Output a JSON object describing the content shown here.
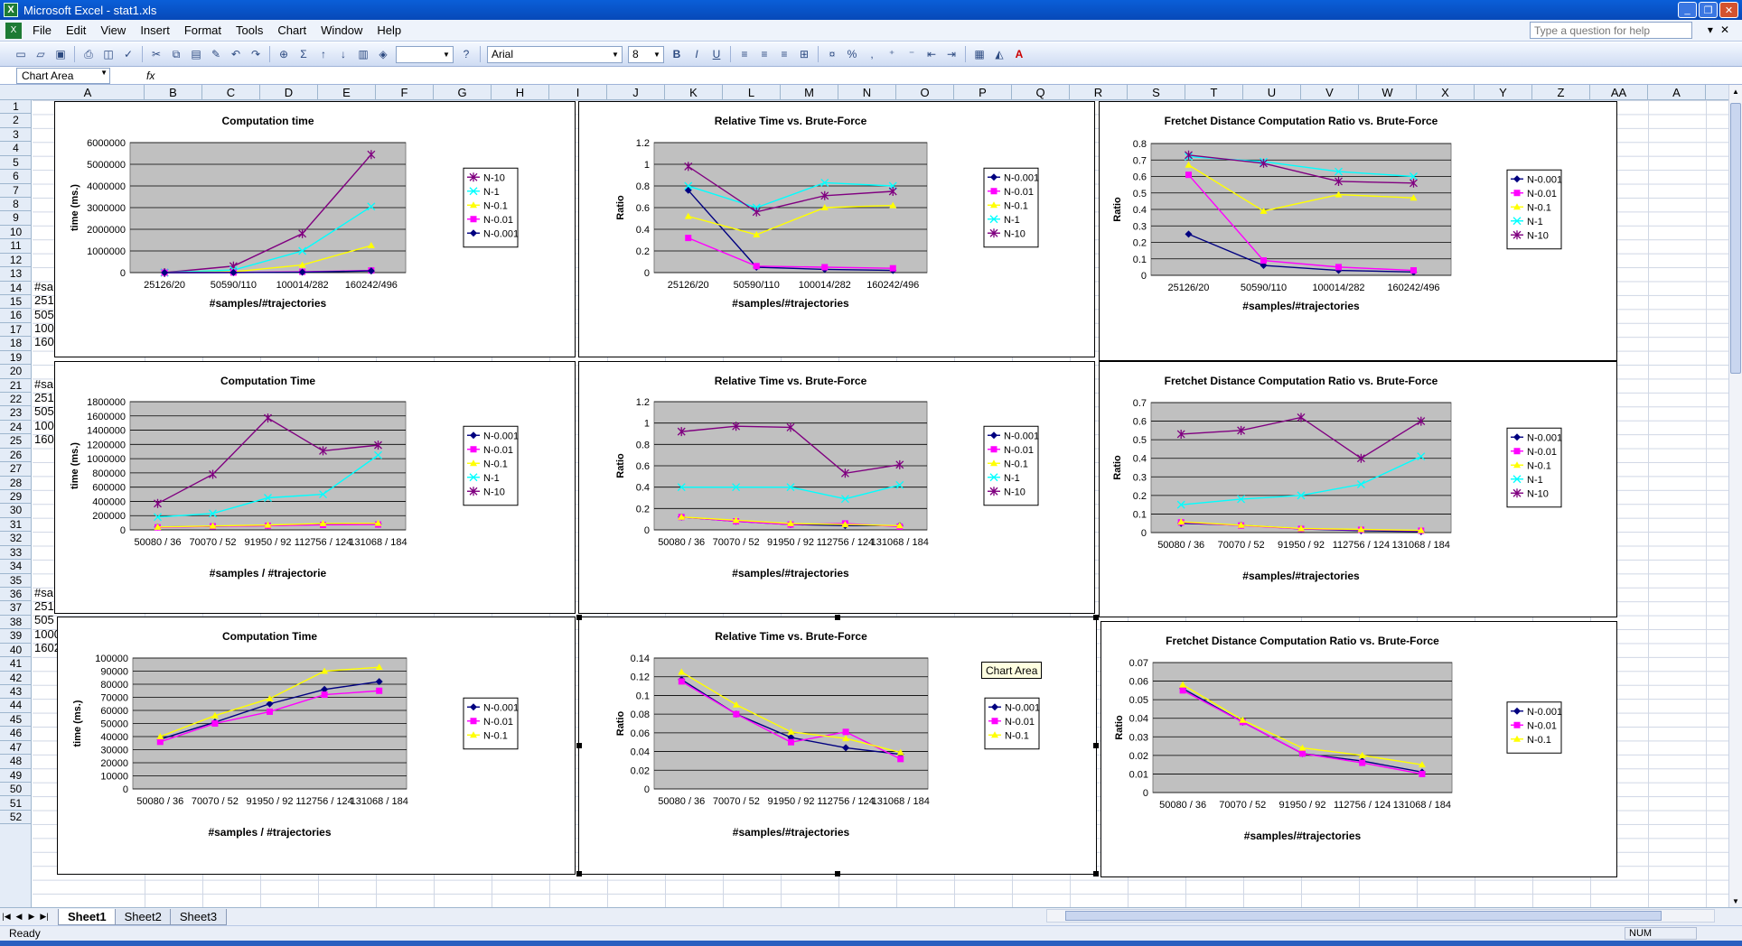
{
  "window": {
    "title": "Microsoft Excel - stat1.xls"
  },
  "menu": [
    "File",
    "Edit",
    "View",
    "Insert",
    "Format",
    "Tools",
    "Chart",
    "Window",
    "Help"
  ],
  "help_placeholder": "Type a question for help",
  "toolbar": {
    "font": "Arial",
    "size": "8"
  },
  "namebox": "Chart Area",
  "fx": "fx",
  "columns": [
    "A",
    "B",
    "C",
    "D",
    "E",
    "F",
    "G",
    "H",
    "I",
    "J",
    "K",
    "L",
    "M",
    "N",
    "O",
    "P",
    "Q",
    "R",
    "S",
    "T",
    "U",
    "V",
    "W",
    "X",
    "Y",
    "Z",
    "AA",
    "A"
  ],
  "rows": [
    "1",
    "2",
    "3",
    "4",
    "5",
    "6",
    "7",
    "8",
    "9",
    "10",
    "11",
    "12",
    "13",
    "14",
    "15",
    "16",
    "17",
    "18",
    "19",
    "20",
    "21",
    "22",
    "23",
    "24",
    "25",
    "26",
    "27",
    "28",
    "29",
    "30",
    "31",
    "32",
    "33",
    "34",
    "35",
    "36",
    "37",
    "38",
    "39",
    "40",
    "41",
    "42",
    "43",
    "44",
    "45",
    "46",
    "47",
    "48",
    "49",
    "50",
    "51",
    "52"
  ],
  "cell_fragments": [
    "#sa",
    "251",
    "505",
    "100",
    "160",
    "#sa",
    "251",
    "505",
    "100",
    "160",
    "#sa",
    "251",
    "505",
    "1000",
    "1602"
  ],
  "sheets": [
    "Sheet1",
    "Sheet2",
    "Sheet3"
  ],
  "status": {
    "ready": "Ready",
    "num": "NUM"
  },
  "tooltip": "Chart Area",
  "chart_data": [
    {
      "type": "line",
      "title": "Computation time",
      "xlabel": "#samples/#trajectories",
      "ylabel": "time (ms.)",
      "categories": [
        "25126/20",
        "50590/110",
        "100014/282",
        "160242/496"
      ],
      "ylim": [
        0,
        6000000
      ],
      "yticks": [
        0,
        1000000,
        2000000,
        3000000,
        4000000,
        5000000,
        6000000
      ],
      "series": [
        {
          "name": "N-10",
          "color": "#800080",
          "values": [
            0,
            300000,
            1800000,
            5450000
          ]
        },
        {
          "name": "N-1",
          "color": "#00ffff",
          "values": [
            0,
            120000,
            1000000,
            3050000
          ]
        },
        {
          "name": "N-0.1",
          "color": "#ffff00",
          "values": [
            0,
            40000,
            350000,
            1250000
          ]
        },
        {
          "name": "N-0.01",
          "color": "#ff00ff",
          "values": [
            0,
            5000,
            40000,
            100000
          ]
        },
        {
          "name": "N-0.001",
          "color": "#000080",
          "values": [
            0,
            3000,
            20000,
            80000
          ]
        }
      ]
    },
    {
      "type": "line",
      "title": "Relative Time vs. Brute-Force",
      "xlabel": "#samples/#trajectories",
      "ylabel": "Ratio",
      "categories": [
        "25126/20",
        "50590/110",
        "100014/282",
        "160242/496"
      ],
      "ylim": [
        0,
        1.2
      ],
      "yticks": [
        0,
        0.2,
        0.4,
        0.6,
        0.8,
        1,
        1.2
      ],
      "series": [
        {
          "name": "N-0.001",
          "color": "#000080",
          "values": [
            0.76,
            0.05,
            0.03,
            0.02
          ]
        },
        {
          "name": "N-0.01",
          "color": "#ff00ff",
          "values": [
            0.32,
            0.06,
            0.05,
            0.04
          ]
        },
        {
          "name": "N-0.1",
          "color": "#ffff00",
          "values": [
            0.52,
            0.35,
            0.6,
            0.62
          ]
        },
        {
          "name": "N-1",
          "color": "#00ffff",
          "values": [
            0.8,
            0.6,
            0.83,
            0.8
          ]
        },
        {
          "name": "N-10",
          "color": "#800080",
          "values": [
            0.98,
            0.56,
            0.71,
            0.75
          ]
        }
      ]
    },
    {
      "type": "line",
      "title": "Fretchet Distance Computation Ratio vs. Brute-Force",
      "xlabel": "#samples/#trajectories",
      "ylabel": "Ratio",
      "categories": [
        "25126/20",
        "50590/110",
        "100014/282",
        "160242/496"
      ],
      "ylim": [
        0,
        0.8
      ],
      "yticks": [
        0,
        0.1,
        0.2,
        0.3,
        0.4,
        0.5,
        0.6,
        0.7,
        0.8
      ],
      "series": [
        {
          "name": "N-0.001",
          "color": "#000080",
          "values": [
            0.25,
            0.06,
            0.03,
            0.02
          ]
        },
        {
          "name": "N-0.01",
          "color": "#ff00ff",
          "values": [
            0.61,
            0.09,
            0.05,
            0.03
          ]
        },
        {
          "name": "N-0.1",
          "color": "#ffff00",
          "values": [
            0.67,
            0.39,
            0.49,
            0.47
          ]
        },
        {
          "name": "N-1",
          "color": "#00ffff",
          "values": [
            0.72,
            0.69,
            0.63,
            0.6
          ]
        },
        {
          "name": "N-10",
          "color": "#800080",
          "values": [
            0.73,
            0.68,
            0.57,
            0.56
          ]
        }
      ]
    },
    {
      "type": "line",
      "title": "Computation Time",
      "xlabel": "#samples / #trajectorie",
      "ylabel": "time (ms.)",
      "categories": [
        "50080 / 36",
        "70070 / 52",
        "91950 / 92",
        "112756 / 124",
        "131068 / 184"
      ],
      "ylim": [
        0,
        1800000
      ],
      "yticks": [
        0,
        200000,
        400000,
        600000,
        800000,
        1000000,
        1200000,
        1400000,
        1600000,
        1800000
      ],
      "series": [
        {
          "name": "N-0.001",
          "color": "#000080",
          "values": [
            40000,
            50000,
            60000,
            75000,
            80000
          ]
        },
        {
          "name": "N-0.01",
          "color": "#ff00ff",
          "values": [
            35000,
            50000,
            58000,
            70000,
            75000
          ]
        },
        {
          "name": "N-0.1",
          "color": "#ffff00",
          "values": [
            40000,
            55000,
            68000,
            90000,
            93000
          ]
        },
        {
          "name": "N-1",
          "color": "#00ffff",
          "values": [
            180000,
            230000,
            450000,
            500000,
            1050000
          ]
        },
        {
          "name": "N-10",
          "color": "#800080",
          "values": [
            370000,
            780000,
            1570000,
            1110000,
            1190000
          ]
        }
      ]
    },
    {
      "type": "line",
      "title": "Relative Time vs. Brute-Force",
      "xlabel": "#samples/#trajectories",
      "ylabel": "Ratio",
      "categories": [
        "50080 / 36",
        "70070 / 52",
        "91950 / 92",
        "112756 / 124",
        "131068 / 184"
      ],
      "ylim": [
        0,
        1.2
      ],
      "yticks": [
        0,
        0.2,
        0.4,
        0.6,
        0.8,
        1,
        1.2
      ],
      "series": [
        {
          "name": "N-0.001",
          "color": "#000080",
          "values": [
            0.12,
            0.08,
            0.05,
            0.04,
            0.04
          ]
        },
        {
          "name": "N-0.01",
          "color": "#ff00ff",
          "values": [
            0.12,
            0.08,
            0.05,
            0.06,
            0.03
          ]
        },
        {
          "name": "N-0.1",
          "color": "#ffff00",
          "values": [
            0.12,
            0.09,
            0.06,
            0.05,
            0.04
          ]
        },
        {
          "name": "N-1",
          "color": "#00ffff",
          "values": [
            0.4,
            0.4,
            0.4,
            0.29,
            0.42
          ]
        },
        {
          "name": "N-10",
          "color": "#800080",
          "values": [
            0.92,
            0.97,
            0.96,
            0.53,
            0.61
          ]
        }
      ]
    },
    {
      "type": "line",
      "title": "Fretchet Distance Computation Ratio  vs. Brute-Force",
      "xlabel": "#samples/#trajectories",
      "ylabel": "Ratio",
      "categories": [
        "50080 / 36",
        "70070 / 52",
        "91950 / 92",
        "112756 / 124",
        "131068 / 184"
      ],
      "ylim": [
        0,
        0.7
      ],
      "yticks": [
        0,
        0.1,
        0.2,
        0.3,
        0.4,
        0.5,
        0.6,
        0.7
      ],
      "series": [
        {
          "name": "N-0.001",
          "color": "#000080",
          "values": [
            0.05,
            0.04,
            0.02,
            0.01,
            0.005
          ]
        },
        {
          "name": "N-0.01",
          "color": "#ff00ff",
          "values": [
            0.055,
            0.038,
            0.02,
            0.015,
            0.01
          ]
        },
        {
          "name": "N-0.1",
          "color": "#ffff00",
          "values": [
            0.058,
            0.04,
            0.022,
            0.017,
            0.012
          ]
        },
        {
          "name": "N-1",
          "color": "#00ffff",
          "values": [
            0.15,
            0.18,
            0.2,
            0.26,
            0.41
          ]
        },
        {
          "name": "N-10",
          "color": "#800080",
          "values": [
            0.53,
            0.55,
            0.62,
            0.4,
            0.6
          ]
        }
      ]
    },
    {
      "type": "line",
      "title": "Computation Time",
      "xlabel": "#samples / #trajectories",
      "ylabel": "time (ms.)",
      "categories": [
        "50080 / 36",
        "70070 / 52",
        "91950 / 92",
        "112756 / 124",
        "131068 / 184"
      ],
      "ylim": [
        0,
        100000
      ],
      "yticks": [
        0,
        10000,
        20000,
        30000,
        40000,
        50000,
        60000,
        70000,
        80000,
        90000,
        100000
      ],
      "series": [
        {
          "name": "N-0.001",
          "color": "#000080",
          "values": [
            38000,
            51000,
            65000,
            76000,
            82000
          ]
        },
        {
          "name": "N-0.01",
          "color": "#ff00ff",
          "values": [
            36000,
            50000,
            59000,
            72000,
            75000
          ]
        },
        {
          "name": "N-0.1",
          "color": "#ffff00",
          "values": [
            40000,
            56000,
            69000,
            90000,
            93000
          ]
        }
      ]
    },
    {
      "type": "line",
      "title": "Relative Time vs. Brute-Force",
      "xlabel": "#samples/#trajectories",
      "ylabel": "Ratio",
      "categories": [
        "50080 / 36",
        "70070 / 52",
        "91950 / 92",
        "112756 / 124",
        "131068 / 184"
      ],
      "ylim": [
        0,
        0.14
      ],
      "yticks": [
        0,
        0.02,
        0.04,
        0.06,
        0.08,
        0.1,
        0.12,
        0.14
      ],
      "series": [
        {
          "name": "N-0.001",
          "color": "#000080",
          "values": [
            0.117,
            0.08,
            0.055,
            0.044,
            0.037
          ]
        },
        {
          "name": "N-0.01",
          "color": "#ff00ff",
          "values": [
            0.115,
            0.08,
            0.05,
            0.061,
            0.032
          ]
        },
        {
          "name": "N-0.1",
          "color": "#ffff00",
          "values": [
            0.125,
            0.09,
            0.061,
            0.054,
            0.039
          ]
        }
      ]
    },
    {
      "type": "line",
      "title": "Fretchet Distance Computation Ratio  vs. Brute-Force",
      "xlabel": "#samples/#trajectories",
      "ylabel": "Ratio",
      "categories": [
        "50080 / 36",
        "70070 / 52",
        "91950 / 92",
        "112756 / 124",
        "131068 / 184"
      ],
      "ylim": [
        0,
        0.07
      ],
      "yticks": [
        0,
        0.01,
        0.02,
        0.03,
        0.04,
        0.05,
        0.06,
        0.07
      ],
      "series": [
        {
          "name": "N-0.001",
          "color": "#000080",
          "values": [
            0.056,
            0.038,
            0.021,
            0.017,
            0.011
          ]
        },
        {
          "name": "N-0.01",
          "color": "#ff00ff",
          "values": [
            0.055,
            0.038,
            0.021,
            0.016,
            0.01
          ]
        },
        {
          "name": "N-0.1",
          "color": "#ffff00",
          "values": [
            0.058,
            0.039,
            0.024,
            0.02,
            0.015
          ]
        }
      ]
    }
  ]
}
